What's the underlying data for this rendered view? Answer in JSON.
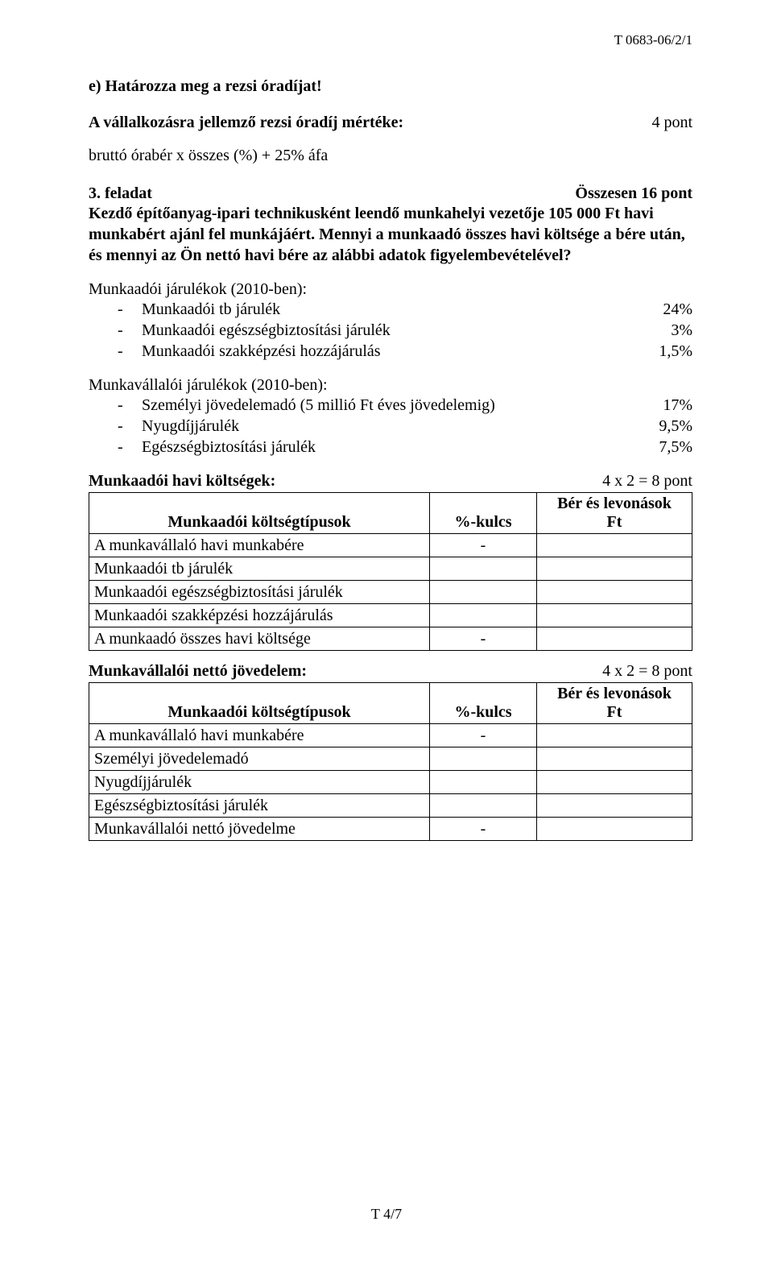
{
  "header_code": "T 0683-06/2/1",
  "section_e": {
    "title": "e) Határozza meg a rezsi óradíjat!",
    "line1_left": "A vállalkozásra jellemző rezsi óradíj mértéke:",
    "line1_right": "4 pont",
    "line2": "bruttó órabér x összes (%) + 25% áfa"
  },
  "task3": {
    "label": "3. feladat",
    "points": "Összesen 16 pont",
    "body": "Kezdő építőanyag-ipari technikusként leendő munkahelyi vezetője 105 000 Ft havi munkabért ajánl fel munkájáért. Mennyi a munkaadó összes havi költsége a bére után, és mennyi az Ön nettó havi bére az alábbi adatok figyelembevételével?"
  },
  "employer_contrib": {
    "heading": "Munkaadói járulékok (2010-ben):",
    "items": [
      {
        "label": "Munkaadói tb járulék",
        "value": "24%"
      },
      {
        "label": "Munkaadói egészségbiztosítási járulék",
        "value": "3%"
      },
      {
        "label": "Munkaadói szakképzési hozzájárulás",
        "value": "1,5%"
      }
    ]
  },
  "employee_contrib": {
    "heading": "Munkavállalói járulékok (2010-ben):",
    "items": [
      {
        "label": "Személyi jövedelemadó  (5 millió Ft éves jövedelemig)",
        "value": "17%"
      },
      {
        "label": "Nyugdíjjárulék",
        "value": "9,5%"
      },
      {
        "label": "Egészségbiztosítási járulék",
        "value": "7,5%"
      }
    ]
  },
  "table1": {
    "title_left": "Munkaadói havi költségek:",
    "title_right": "4 x 2 = 8 pont",
    "col1": "Munkaadói költségtípusok",
    "col2": "%-kulcs",
    "col3": "Bér és levonások\nFt",
    "rows": [
      {
        "label": "A munkavállaló havi munkabére",
        "pct": "-",
        "amt": ""
      },
      {
        "label": "Munkaadói tb járulék",
        "pct": "",
        "amt": ""
      },
      {
        "label": "Munkaadói egészségbiztosítási járulék",
        "pct": "",
        "amt": ""
      },
      {
        "label": "Munkaadói szakképzési hozzájárulás",
        "pct": "",
        "amt": ""
      },
      {
        "label": "A munkaadó összes havi költsége",
        "pct": "-",
        "amt": ""
      }
    ]
  },
  "table2": {
    "title_left": "Munkavállalói nettó jövedelem:",
    "title_right": "4 x 2 = 8 pont",
    "col1": "Munkaadói költségtípusok",
    "col2": "%-kulcs",
    "col3": "Bér és levonások\nFt",
    "rows": [
      {
        "label": "A munkavállaló havi munkabére",
        "pct": "-",
        "amt": ""
      },
      {
        "label": "Személyi jövedelemadó",
        "pct": "",
        "amt": ""
      },
      {
        "label": "Nyugdíjjárulék",
        "pct": "",
        "amt": ""
      },
      {
        "label": "Egészségbiztosítási járulék",
        "pct": "",
        "amt": ""
      },
      {
        "label": "Munkavállalói nettó jövedelme",
        "pct": "-",
        "amt": ""
      }
    ]
  },
  "footer": "T 4/7"
}
